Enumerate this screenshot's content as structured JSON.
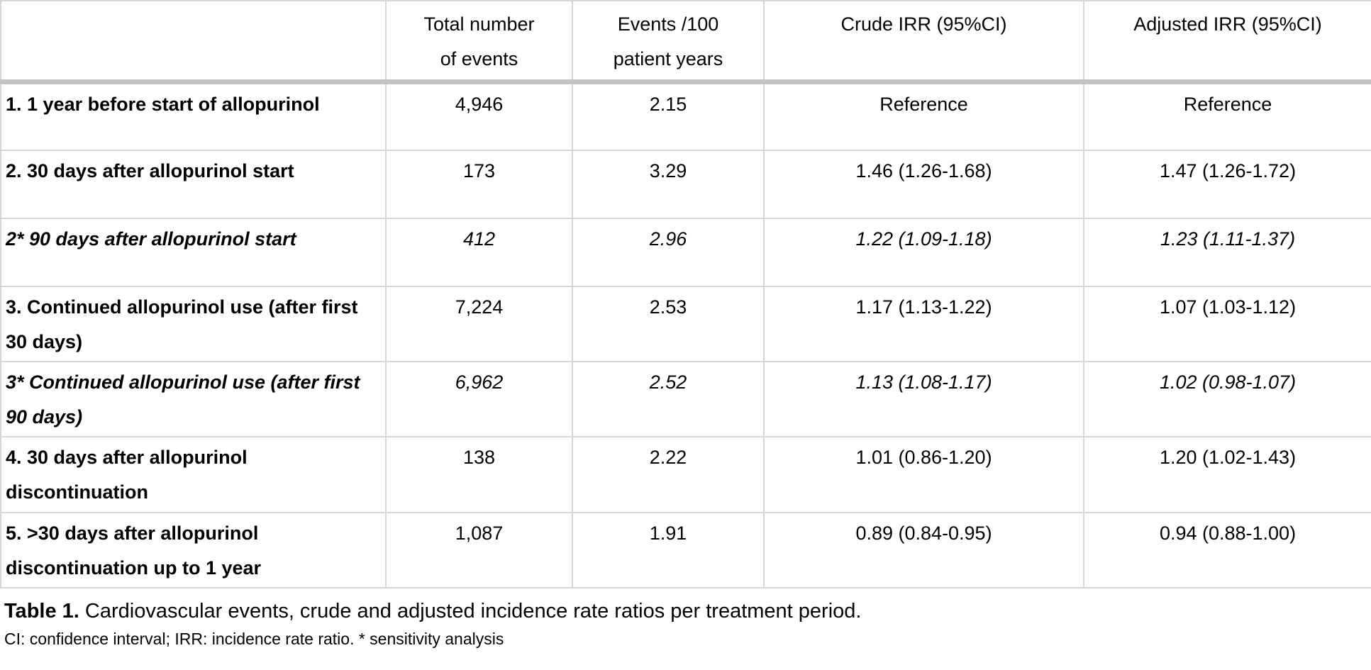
{
  "table": {
    "header": {
      "period": "",
      "total_events": "Total number of events",
      "events_rate": "Events /100 patient years",
      "crude_irr": "Crude IRR (95%CI)",
      "adjusted_irr": "Adjusted IRR (95%CI)"
    },
    "rows": [
      {
        "label": "1. 1 year before start of allopurinol",
        "total_events": "4,946",
        "events_rate": "2.15",
        "crude_irr": "Reference",
        "adjusted_irr": "Reference",
        "emphasis": "normal"
      },
      {
        "label": "2. 30 days after allopurinol start",
        "total_events": "173",
        "events_rate": "3.29",
        "crude_irr": "1.46 (1.26-1.68)",
        "adjusted_irr": "1.47 (1.26-1.72)",
        "emphasis": "normal"
      },
      {
        "label": "2* 90 days after allopurinol start",
        "total_events": "412",
        "events_rate": "2.96",
        "crude_irr": "1.22 (1.09-1.18)",
        "adjusted_irr": "1.23 (1.11-1.37)",
        "emphasis": "italic"
      },
      {
        "label": "3. Continued allopurinol use (after first 30 days)",
        "total_events": "7,224",
        "events_rate": "2.53",
        "crude_irr": "1.17 (1.13-1.22)",
        "adjusted_irr": "1.07 (1.03-1.12)",
        "emphasis": "normal"
      },
      {
        "label": "3* Continued allopurinol use (after first 90 days)",
        "total_events": "6,962",
        "events_rate": "2.52",
        "crude_irr": "1.13 (1.08-1.17)",
        "adjusted_irr": "1.02 (0.98-1.07)",
        "emphasis": "italic"
      },
      {
        "label": "4. 30 days after allopurinol discontinuation",
        "total_events": "138",
        "events_rate": "2.22",
        "crude_irr": "1.01 (0.86-1.20)",
        "adjusted_irr": "1.20 (1.02-1.43)",
        "emphasis": "normal"
      },
      {
        "label": "5. >30 days after allopurinol discontinuation up to 1 year",
        "total_events": "1,087",
        "events_rate": "1.91",
        "crude_irr": "0.89 (0.84-0.95)",
        "adjusted_irr": "0.94 (0.88-1.00)",
        "emphasis": "normal"
      }
    ]
  },
  "caption": {
    "label": "Table 1.",
    "text": " Cardiovascular events, crude and adjusted incidence rate ratios per treatment period."
  },
  "footnote": "CI: confidence interval; IRR: incidence rate ratio. * sensitivity analysis",
  "colors": {
    "cell_border": "#d6d6d6",
    "header_rule": "#c2c2c2",
    "text": "#000000",
    "background": "#ffffff"
  }
}
